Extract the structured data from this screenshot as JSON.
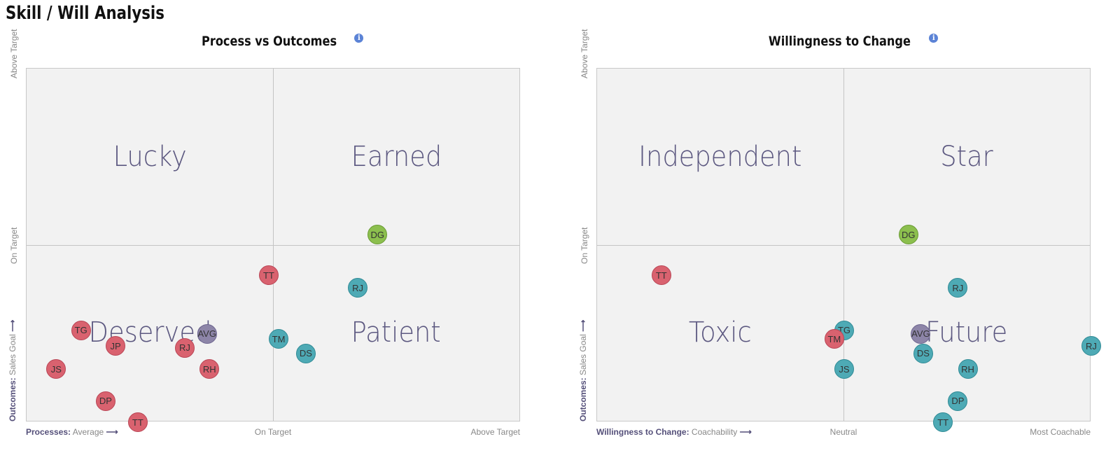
{
  "page": {
    "title": "Skill / Will Analysis"
  },
  "colors": {
    "red": "#d9626f",
    "teal": "#4eaab5",
    "green": "#8cbf4e",
    "avg": "#8d85a8",
    "quadrant_text": "#5c5880"
  },
  "icons": {
    "info": "info-icon",
    "arrow": "arrow-right-icon"
  },
  "chart_data": [
    {
      "type": "scatter",
      "title": "Process vs Outcomes",
      "quadrants": {
        "top_left": "Lucky",
        "top_right": "Earned",
        "bottom_left": "Deserved",
        "bottom_right": "Patient"
      },
      "xlabel": {
        "bold": "Processes:",
        "text": "Average",
        "arrow": "⟶"
      },
      "x_ticks": [
        "On Target",
        "Above Target"
      ],
      "ylabel": {
        "bold": "Outcomes:",
        "text": "Sales Goal",
        "arrow": "⟶"
      },
      "y_ticks": [
        "On Target",
        "Above Target"
      ],
      "xlim": [
        0,
        100
      ],
      "ylim": [
        0,
        100
      ],
      "points": [
        {
          "label": "DG",
          "x": 71,
          "y": 53,
          "color": "green"
        },
        {
          "label": "TT",
          "x": 49,
          "y": 41.5,
          "color": "red"
        },
        {
          "label": "RJ",
          "x": 67,
          "y": 38,
          "color": "teal"
        },
        {
          "label": "TG",
          "x": 11,
          "y": 26,
          "color": "red"
        },
        {
          "label": "AVG",
          "x": 36.5,
          "y": 25,
          "color": "avg"
        },
        {
          "label": "TM",
          "x": 51,
          "y": 23.5,
          "color": "teal"
        },
        {
          "label": "JP",
          "x": 18,
          "y": 21.5,
          "color": "red"
        },
        {
          "label": "RJ",
          "x": 32,
          "y": 21,
          "color": "red"
        },
        {
          "label": "DS",
          "x": 56.5,
          "y": 19.5,
          "color": "teal"
        },
        {
          "label": "JS",
          "x": 6,
          "y": 15,
          "color": "red"
        },
        {
          "label": "RH",
          "x": 37,
          "y": 15,
          "color": "red"
        },
        {
          "label": "DP",
          "x": 16,
          "y": 6,
          "color": "red"
        },
        {
          "label": "TT",
          "x": 22.5,
          "y": 0,
          "color": "red"
        }
      ]
    },
    {
      "type": "scatter",
      "title": "Willingness to Change",
      "quadrants": {
        "top_left": "Independent",
        "top_right": "Star",
        "bottom_left": "Toxic",
        "bottom_right": "Future"
      },
      "xlabel": {
        "bold": "Willingness to Change:",
        "text": "Coachability",
        "arrow": "⟶"
      },
      "x_ticks": [
        "Neutral",
        "Most Coachable"
      ],
      "ylabel": {
        "bold": "Outcomes:",
        "text": "Sales Goal",
        "arrow": "⟶"
      },
      "y_ticks": [
        "On Target",
        "Above Target"
      ],
      "xlim": [
        0,
        100
      ],
      "ylim": [
        0,
        100
      ],
      "points": [
        {
          "label": "DG",
          "x": 63,
          "y": 53,
          "color": "green"
        },
        {
          "label": "TT",
          "x": 13,
          "y": 41.5,
          "color": "red"
        },
        {
          "label": "RJ",
          "x": 73,
          "y": 38,
          "color": "teal"
        },
        {
          "label": "TG",
          "x": 50,
          "y": 26,
          "color": "teal"
        },
        {
          "label": "AVG",
          "x": 65.5,
          "y": 25,
          "color": "avg"
        },
        {
          "label": "TM",
          "x": 48,
          "y": 23.5,
          "color": "red"
        },
        {
          "label": "RJ",
          "x": 100,
          "y": 21.5,
          "color": "teal"
        },
        {
          "label": "DS",
          "x": 66,
          "y": 19.5,
          "color": "teal"
        },
        {
          "label": "JS",
          "x": 50,
          "y": 15,
          "color": "teal"
        },
        {
          "label": "RH",
          "x": 75,
          "y": 15,
          "color": "teal"
        },
        {
          "label": "DP",
          "x": 73,
          "y": 6,
          "color": "teal"
        },
        {
          "label": "TT",
          "x": 70,
          "y": 0,
          "color": "teal"
        }
      ]
    }
  ]
}
